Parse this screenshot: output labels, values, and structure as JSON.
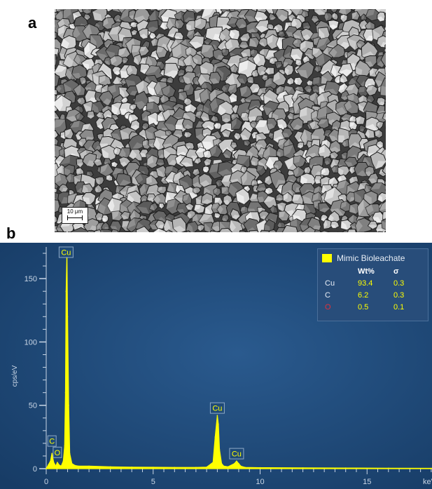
{
  "panel_a": {
    "letter": "a",
    "scale_bar_label": "10 μm"
  },
  "panel_b": {
    "letter": "b",
    "legend": {
      "title": "Mimic Bioleachate",
      "swatch_color": "#ffff00",
      "col_wt": "Wt%",
      "col_sigma": "σ",
      "rows": [
        {
          "element": "Cu",
          "wt": "93.4",
          "sigma": "0.3",
          "element_color": "#e8eef6"
        },
        {
          "element": "C",
          "wt": "6.2",
          "sigma": "0.3",
          "element_color": "#e8eef6"
        },
        {
          "element": "O",
          "wt": "0.5",
          "sigma": "0.1",
          "element_color": "#e0303a"
        }
      ]
    }
  },
  "chart_data": {
    "type": "line",
    "title": "",
    "xlabel": "keV",
    "ylabel": "cps/eV",
    "xlim": [
      0,
      20
    ],
    "ylim": [
      0,
      175
    ],
    "x_ticks": [
      0,
      5,
      10,
      15
    ],
    "y_ticks": [
      0,
      50,
      100,
      150
    ],
    "grid": false,
    "background_color": "#1e4a78",
    "series_color": "#ffff00",
    "series": [
      {
        "name": "Mimic Bioleachate",
        "x": [
          0.0,
          0.1,
          0.2,
          0.27,
          0.35,
          0.45,
          0.52,
          0.6,
          0.7,
          0.8,
          0.86,
          0.9,
          0.93,
          0.97,
          1.0,
          1.05,
          1.1,
          1.2,
          1.35,
          1.5,
          2.0,
          3.0,
          4.0,
          5.0,
          6.0,
          7.0,
          7.5,
          7.8,
          7.9,
          8.0,
          8.05,
          8.1,
          8.2,
          8.3,
          8.5,
          8.8,
          8.9,
          9.0,
          9.1,
          9.3,
          10.0,
          12.0,
          14.0,
          16.0,
          18.0,
          20.0
        ],
        "y": [
          0,
          3,
          6,
          12,
          5,
          2,
          5,
          3,
          2,
          6,
          18,
          60,
          140,
          171,
          120,
          50,
          12,
          4,
          2.5,
          2,
          2,
          1.5,
          1.2,
          1.1,
          1,
          1,
          1.2,
          5,
          25,
          42,
          35,
          15,
          4,
          2,
          1.5,
          4,
          6,
          4,
          2,
          1,
          0.8,
          0.6,
          0.5,
          0.4,
          0.3,
          0.3
        ]
      }
    ],
    "peak_labels": [
      {
        "label": "Cu",
        "x": 0.93,
        "y": 175
      },
      {
        "label": "C",
        "x": 0.27,
        "y": 26
      },
      {
        "label": "O",
        "x": 0.52,
        "y": 17
      },
      {
        "label": "Cu",
        "x": 8.0,
        "y": 52
      },
      {
        "label": "Cu",
        "x": 8.9,
        "y": 16
      }
    ]
  }
}
